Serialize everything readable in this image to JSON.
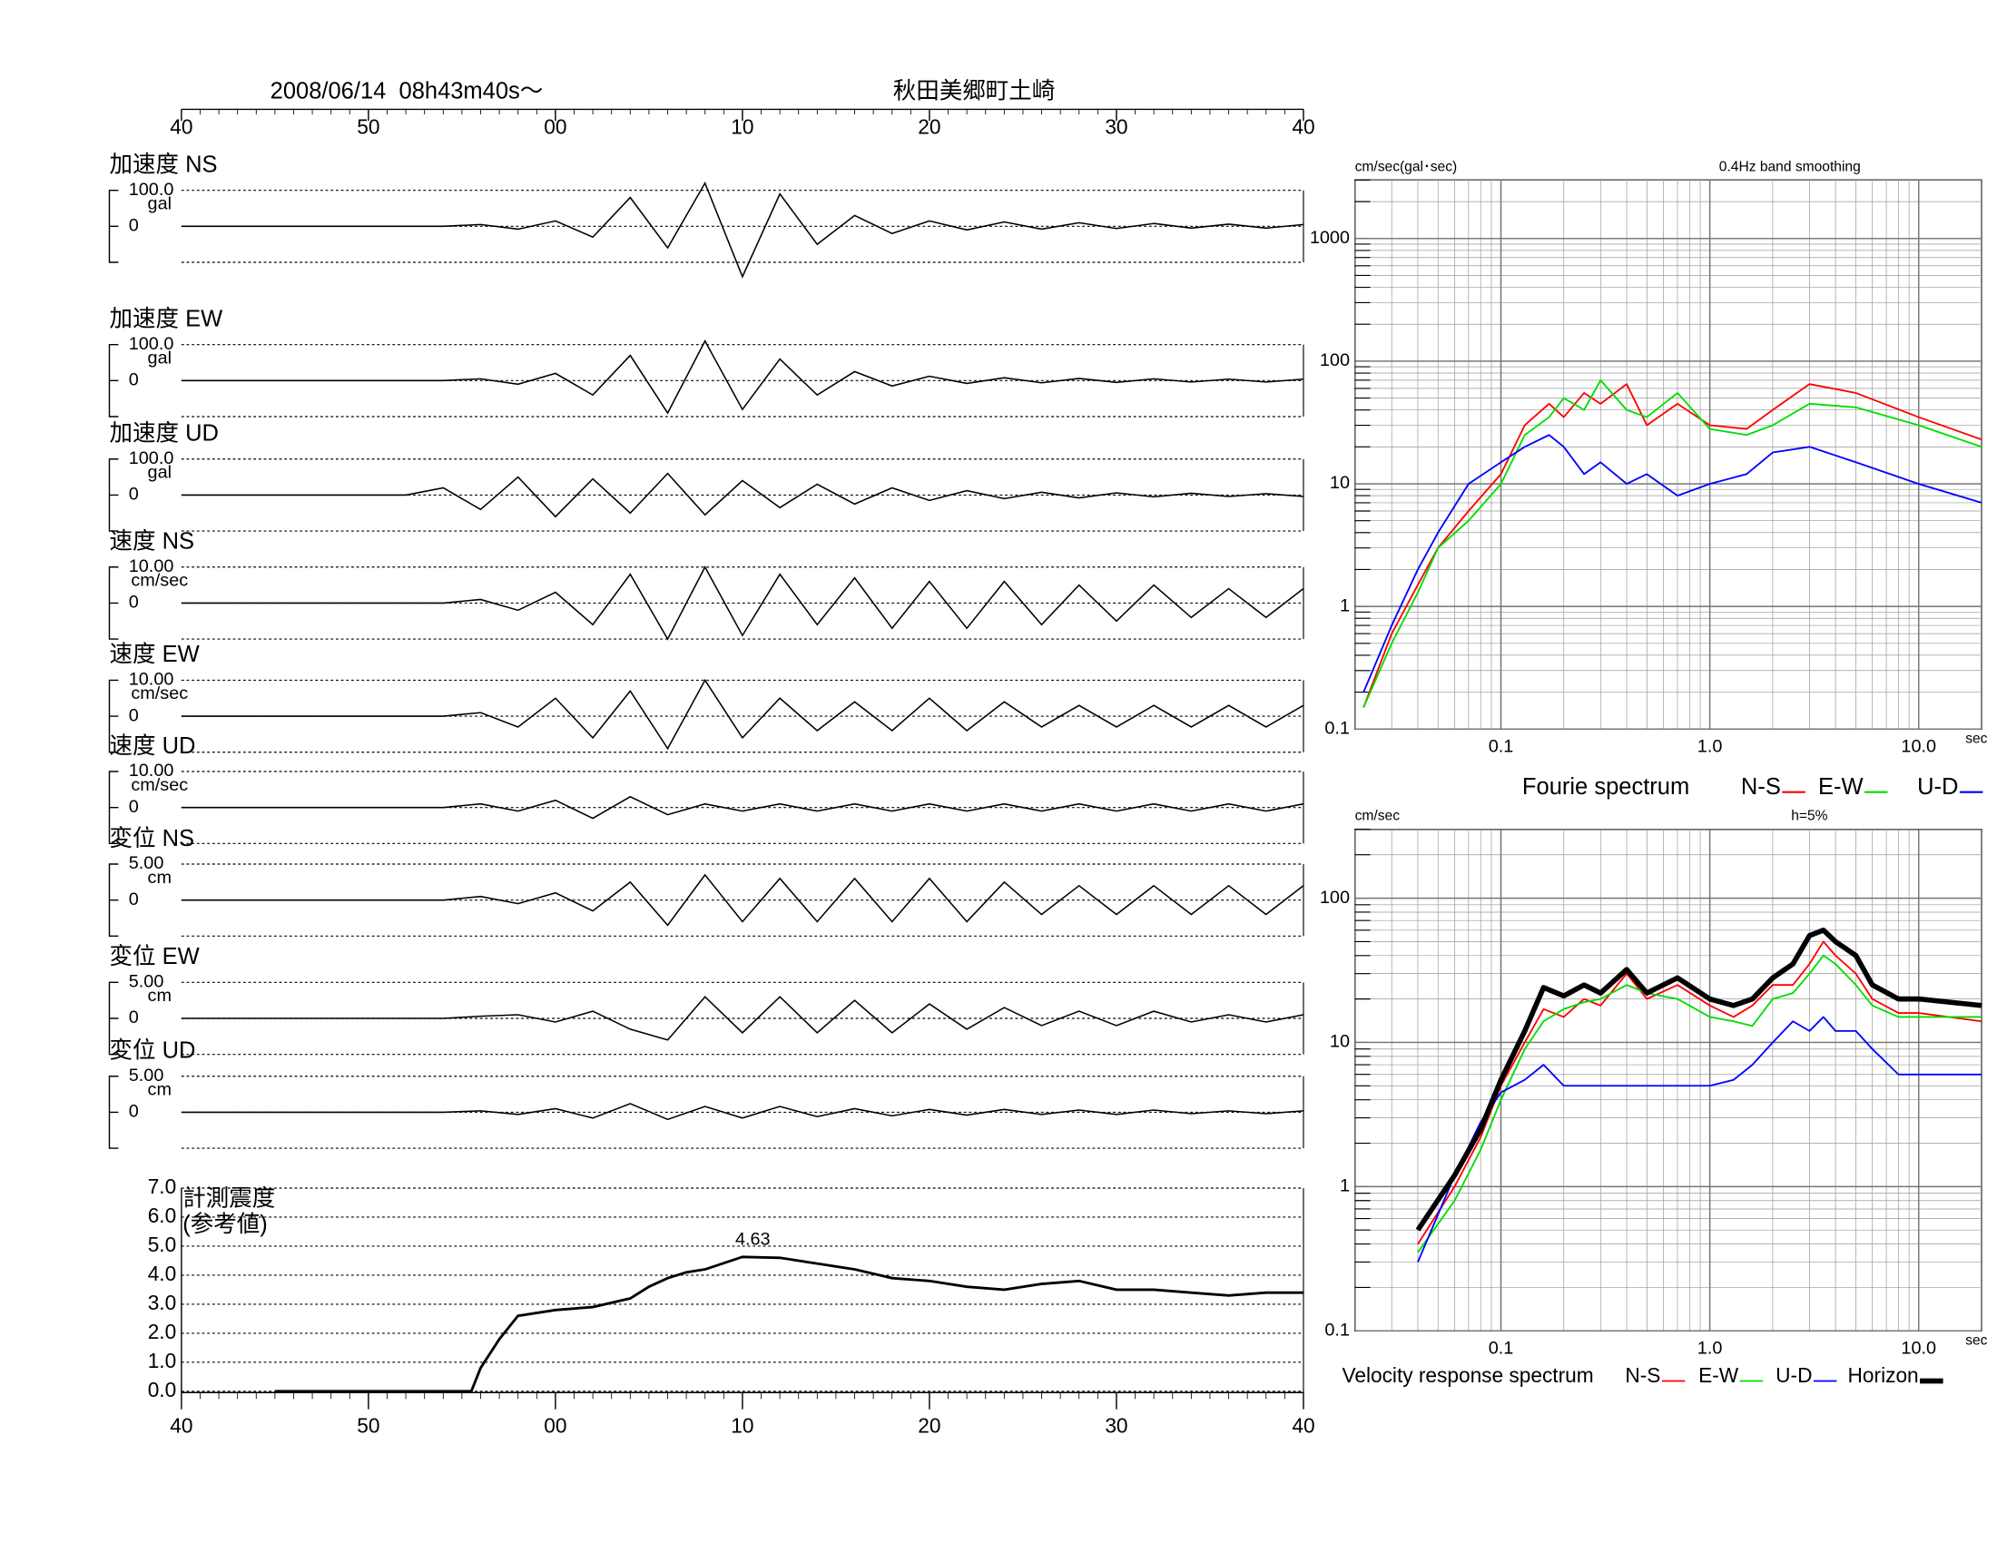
{
  "chart_data": [
    {
      "type": "line",
      "title": "2008/06/14  08h43m40s〜",
      "subtitle": "秋田美郷町土崎",
      "x": [
        0,
        2,
        4,
        6,
        8,
        10,
        12,
        14,
        16,
        18,
        20,
        22,
        24,
        26,
        28,
        30,
        32,
        34,
        36,
        38,
        40,
        42,
        44,
        46,
        48,
        50,
        52,
        54,
        56,
        58,
        60
      ],
      "xlim": [
        0,
        60
      ],
      "xticks": [
        {
          "value": 0,
          "label": "40"
        },
        {
          "value": 10,
          "label": "50"
        },
        {
          "value": 20,
          "label": "00"
        },
        {
          "value": 30,
          "label": "10"
        },
        {
          "value": 40,
          "label": "20"
        },
        {
          "value": 50,
          "label": "30"
        },
        {
          "value": 60,
          "label": "40"
        }
      ],
      "series": [
        {
          "name": "加速度 NS",
          "unit": "gal",
          "color": "#000000",
          "ylim": [
            -100,
            100
          ],
          "yticks": [
            {
              "value": 100,
              "label": "100.0"
            },
            0
          ],
          "values": [
            0,
            0,
            0,
            0,
            0,
            0,
            0,
            0,
            5,
            -8,
            15,
            -30,
            80,
            -60,
            120,
            -140,
            90,
            -50,
            30,
            -20,
            15,
            -10,
            12,
            -8,
            10,
            -6,
            8,
            -5,
            6,
            -5,
            5
          ]
        },
        {
          "name": "加速度 EW",
          "unit": "gal",
          "color": "#000000",
          "ylim": [
            -100,
            100
          ],
          "yticks": [
            {
              "value": 100,
              "label": "100.0"
            },
            0
          ],
          "values": [
            0,
            0,
            0,
            0,
            0,
            0,
            0,
            0,
            5,
            -10,
            20,
            -40,
            70,
            -90,
            110,
            -80,
            60,
            -40,
            25,
            -15,
            12,
            -8,
            8,
            -6,
            6,
            -5,
            5,
            -4,
            4,
            -4,
            4
          ]
        },
        {
          "name": "加速度 UD",
          "unit": "gal",
          "color": "#000000",
          "ylim": [
            -100,
            100
          ],
          "yticks": [
            {
              "value": 100,
              "label": "100.0"
            },
            0
          ],
          "values": [
            0,
            0,
            0,
            0,
            0,
            0,
            0,
            20,
            -40,
            50,
            -60,
            45,
            -50,
            60,
            -55,
            40,
            -35,
            30,
            -25,
            20,
            -15,
            12,
            -10,
            8,
            -8,
            6,
            -5,
            5,
            -4,
            4,
            -4
          ]
        },
        {
          "name": "速度 NS",
          "unit": "cm/sec",
          "color": "#000000",
          "ylim": [
            -10,
            10
          ],
          "yticks": [
            {
              "value": 10,
              "label": "10.00"
            },
            0
          ],
          "values": [
            0,
            0,
            0,
            0,
            0,
            0,
            0,
            0,
            1,
            -2,
            3,
            -6,
            8,
            -10,
            10,
            -9,
            8,
            -6,
            7,
            -7,
            6,
            -7,
            6,
            -6,
            5,
            -5,
            5,
            -4,
            4,
            -4,
            4
          ]
        },
        {
          "name": "速度 EW",
          "unit": "cm/sec",
          "color": "#000000",
          "ylim": [
            -10,
            10
          ],
          "yticks": [
            {
              "value": 10,
              "label": "10.00"
            },
            0
          ],
          "values": [
            0,
            0,
            0,
            0,
            0,
            0,
            0,
            0,
            1,
            -3,
            5,
            -6,
            7,
            -9,
            10,
            -6,
            5,
            -4,
            4,
            -4,
            5,
            -4,
            4,
            -3,
            3,
            -3,
            3,
            -3,
            3,
            -3,
            3
          ]
        },
        {
          "name": "速度 UD",
          "unit": "cm/sec",
          "color": "#000000",
          "ylim": [
            -10,
            10
          ],
          "yticks": [
            {
              "value": 10,
              "label": "10.00"
            },
            0
          ],
          "values": [
            0,
            0,
            0,
            0,
            0,
            0,
            0,
            0,
            1,
            -1,
            2,
            -3,
            3,
            -2,
            1,
            -1,
            1,
            -1,
            1,
            -1,
            1,
            -1,
            1,
            -1,
            1,
            -1,
            1,
            -1,
            1,
            -1,
            1
          ]
        },
        {
          "name": "変位 NS",
          "unit": "cm",
          "color": "#000000",
          "ylim": [
            -5,
            5
          ],
          "yticks": [
            {
              "value": 5,
              "label": "5.00"
            },
            0
          ],
          "values": [
            0,
            0,
            0,
            0,
            0,
            0,
            0,
            0,
            0.5,
            -0.5,
            1,
            -1.5,
            2.5,
            -3.5,
            3.5,
            -3,
            3,
            -3,
            3,
            -3,
            3,
            -3,
            2.5,
            -2,
            2,
            -2,
            2,
            -2,
            2,
            -2,
            2
          ]
        },
        {
          "name": "変位 EW",
          "unit": "cm",
          "color": "#000000",
          "ylim": [
            -5,
            5
          ],
          "yticks": [
            {
              "value": 5,
              "label": "5.00"
            },
            0
          ],
          "values": [
            0,
            0,
            0,
            0,
            0,
            0,
            0,
            0,
            0.3,
            0.5,
            -0.5,
            1,
            -1.5,
            -3,
            3,
            -2,
            3,
            -2,
            2.5,
            -2,
            2,
            -1.5,
            1.5,
            -1,
            1,
            -1,
            1,
            -0.5,
            0.5,
            -0.5,
            0.5
          ]
        },
        {
          "name": "変位 UD",
          "unit": "cm",
          "color": "#000000",
          "ylim": [
            -5,
            5
          ],
          "yticks": [
            {
              "value": 5,
              "label": "5.00"
            },
            0
          ],
          "values": [
            0,
            0,
            0,
            0,
            0,
            0,
            0,
            0,
            0.2,
            -0.3,
            0.5,
            -0.8,
            1.2,
            -1,
            0.8,
            -0.8,
            0.8,
            -0.6,
            0.5,
            -0.5,
            0.4,
            -0.4,
            0.4,
            -0.3,
            0.3,
            -0.3,
            0.3,
            -0.2,
            0.2,
            -0.2,
            0.2
          ]
        }
      ]
    },
    {
      "type": "line",
      "ylabel": "計測震度",
      "ylabel2": "(参考値)",
      "color": "#000000",
      "x": [
        5,
        15.5,
        16,
        17,
        18,
        20,
        22,
        24,
        25,
        26,
        27,
        28,
        30,
        32,
        34,
        36,
        38,
        40,
        42,
        44,
        46,
        48,
        50,
        52,
        54,
        56,
        58,
        60
      ],
      "values": [
        0,
        0,
        0.8,
        1.8,
        2.6,
        2.8,
        2.9,
        3.2,
        3.6,
        3.9,
        4.1,
        4.2,
        4.63,
        4.6,
        4.4,
        4.2,
        3.9,
        3.8,
        3.6,
        3.5,
        3.7,
        3.8,
        3.5,
        3.5,
        3.4,
        3.3,
        3.4,
        3.4
      ],
      "peak_label": "4.63",
      "xlim": [
        0,
        60
      ],
      "xticks": [
        {
          "value": 0,
          "label": "40"
        },
        {
          "value": 10,
          "label": "50"
        },
        {
          "value": 20,
          "label": "00"
        },
        {
          "value": 30,
          "label": "10"
        },
        {
          "value": 40,
          "label": "20"
        },
        {
          "value": 50,
          "label": "30"
        },
        {
          "value": 60,
          "label": "40"
        }
      ],
      "ylim": [
        0,
        7
      ],
      "yticks": [
        {
          "value": 0,
          "label": "0.0"
        },
        {
          "value": 1,
          "label": "1.0"
        },
        {
          "value": 2,
          "label": "2.0"
        },
        {
          "value": 3,
          "label": "3.0"
        },
        {
          "value": 4,
          "label": "4.0"
        },
        {
          "value": 5,
          "label": "5.0"
        },
        {
          "value": 6,
          "label": "6.0"
        },
        {
          "value": 7,
          "label": "7.0"
        }
      ],
      "grid": true
    },
    {
      "type": "line",
      "title": "Fourie spectrum",
      "ylabel": "cm/sec(gal･sec)",
      "note": "0.4Hz band smoothing",
      "xlabel": "sec",
      "log_x": true,
      "log_y": true,
      "grid": true,
      "xlim": [
        0.02,
        20
      ],
      "ylim": [
        0.1,
        3000
      ],
      "xticks": [
        0.1,
        {
          "value": 1,
          "label": "1.0"
        },
        {
          "value": 10,
          "label": "10.0"
        }
      ],
      "yticks": [
        0.1,
        1,
        10,
        100,
        1000
      ],
      "x": [
        0.022,
        0.03,
        0.04,
        0.05,
        0.07,
        0.1,
        0.13,
        0.17,
        0.2,
        0.25,
        0.3,
        0.4,
        0.5,
        0.7,
        1.0,
        1.5,
        2,
        3,
        5,
        10,
        20
      ],
      "series": [
        {
          "name": "N-S",
          "color": "#ff0000",
          "values": [
            0.15,
            0.6,
            1.5,
            3,
            6,
            12,
            30,
            45,
            35,
            55,
            45,
            65,
            30,
            45,
            30,
            28,
            40,
            65,
            55,
            35,
            23
          ]
        },
        {
          "name": "E-W",
          "color": "#00dd00",
          "values": [
            0.15,
            0.5,
            1.3,
            3,
            5,
            10,
            25,
            35,
            50,
            40,
            70,
            40,
            35,
            55,
            28,
            25,
            30,
            45,
            42,
            30,
            20
          ]
        },
        {
          "name": "U-D",
          "color": "#0000ff",
          "values": [
            0.2,
            0.7,
            2,
            4,
            10,
            15,
            20,
            25,
            20,
            12,
            15,
            10,
            12,
            8,
            10,
            12,
            18,
            20,
            15,
            10,
            7
          ]
        }
      ]
    },
    {
      "type": "line",
      "title": "Velocity response spectrum",
      "ylabel": "cm/sec",
      "note": "h=5%",
      "xlabel": "sec",
      "log_x": true,
      "log_y": true,
      "grid": true,
      "xlim": [
        0.02,
        20
      ],
      "ylim": [
        0.1,
        300
      ],
      "xticks": [
        0.1,
        {
          "value": 1,
          "label": "1.0"
        },
        {
          "value": 10,
          "label": "10.0"
        }
      ],
      "yticks": [
        0.1,
        1,
        10,
        100
      ],
      "x": [
        0.04,
        0.06,
        0.08,
        0.1,
        0.13,
        0.16,
        0.2,
        0.25,
        0.3,
        0.4,
        0.5,
        0.7,
        1.0,
        1.3,
        1.6,
        2,
        2.5,
        3,
        3.5,
        4,
        5,
        6,
        8,
        10,
        20
      ],
      "series": [
        {
          "name": "N-S",
          "color": "#ff0000",
          "width": 1.3,
          "values": [
            0.4,
            1,
            2.2,
            5,
            10,
            17,
            15,
            20,
            18,
            30,
            20,
            25,
            18,
            15,
            18,
            25,
            25,
            35,
            50,
            40,
            30,
            20,
            16,
            16,
            14
          ]
        },
        {
          "name": "E-W",
          "color": "#00dd00",
          "width": 1.3,
          "values": [
            0.35,
            0.8,
            1.8,
            4,
            9,
            14,
            17,
            19,
            20,
            25,
            22,
            20,
            15,
            14,
            13,
            20,
            22,
            30,
            40,
            35,
            25,
            18,
            15,
            15,
            15
          ]
        },
        {
          "name": "U-D",
          "color": "#0000ff",
          "width": 1.3,
          "values": [
            0.3,
            1.2,
            2.8,
            4.5,
            5.5,
            7,
            5,
            5,
            5,
            5,
            5,
            5,
            5,
            5.5,
            7,
            10,
            14,
            12,
            15,
            12,
            12,
            9,
            6,
            6,
            6
          ]
        },
        {
          "name": "Horizon",
          "color": "#000000",
          "width": 4,
          "values": [
            0.5,
            1.2,
            2.5,
            5.5,
            12,
            24,
            21,
            25,
            22,
            32,
            22,
            28,
            20,
            18,
            20,
            28,
            35,
            55,
            60,
            50,
            40,
            25,
            20,
            20,
            18
          ]
        }
      ]
    }
  ]
}
